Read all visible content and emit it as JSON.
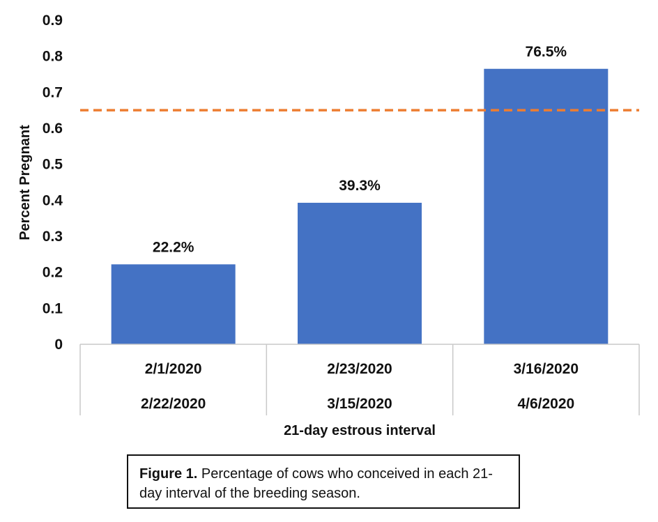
{
  "chart_data": {
    "type": "bar",
    "categories": [
      [
        "2/1/2020",
        "2/22/2020"
      ],
      [
        "2/23/2020",
        "3/15/2020"
      ],
      [
        "3/16/2020",
        "4/6/2020"
      ]
    ],
    "values": [
      0.222,
      0.393,
      0.765
    ],
    "data_labels": [
      "22.2%",
      "39.3%",
      "76.5%"
    ],
    "ylabel": "Percent Pregnant",
    "xlabel": "21-day estrous interval",
    "ylim": [
      0,
      0.9
    ],
    "yticks": [
      0,
      0.1,
      0.2,
      0.3,
      0.4,
      0.5,
      0.6,
      0.7,
      0.8,
      0.9
    ],
    "ytick_labels": [
      "0",
      "0.1",
      "0.2",
      "0.3",
      "0.4",
      "0.5",
      "0.6",
      "0.7",
      "0.8",
      "0.9"
    ],
    "reference_line": {
      "y": 0.65,
      "style": "dashed",
      "color": "#ED7D31"
    },
    "bar_color": "#4472C4",
    "grid": false,
    "legend": "none"
  },
  "caption": {
    "label": "Figure 1.",
    "text": " Percentage of cows who conceived in each 21-day interval of the breeding season."
  }
}
